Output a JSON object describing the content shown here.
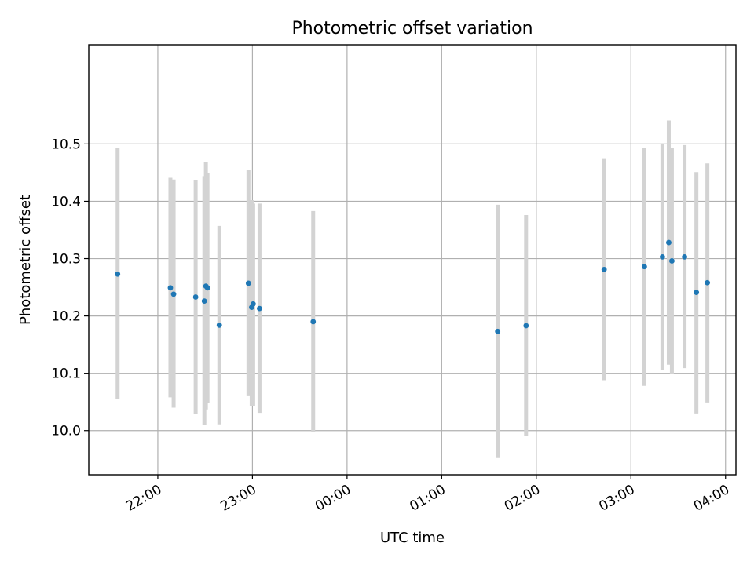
{
  "chart_data": {
    "type": "scatter",
    "title": "Photometric offset variation",
    "xlabel": "UTC time",
    "ylabel": "Photometric offset",
    "grid": true,
    "x_unit": "hours after 00:00 UTC",
    "xlim": [
      -2.73,
      4.11
    ],
    "ylim": [
      9.923,
      10.673
    ],
    "xticks": [
      {
        "value": -2.0,
        "label": "22:00"
      },
      {
        "value": -1.0,
        "label": "23:00"
      },
      {
        "value": 0.0,
        "label": "00:00"
      },
      {
        "value": 1.0,
        "label": "01:00"
      },
      {
        "value": 2.0,
        "label": "02:00"
      },
      {
        "value": 3.0,
        "label": "03:00"
      },
      {
        "value": 4.0,
        "label": "04:00"
      }
    ],
    "yticks": [
      {
        "value": 10.0,
        "label": "10.0"
      },
      {
        "value": 10.1,
        "label": "10.1"
      },
      {
        "value": 10.2,
        "label": "10.2"
      },
      {
        "value": 10.3,
        "label": "10.3"
      },
      {
        "value": 10.4,
        "label": "10.4"
      },
      {
        "value": 10.5,
        "label": "10.5"
      }
    ],
    "marker_color": "#1f77b4",
    "errorbar_color": "#d3d3d3",
    "points": [
      {
        "x": -2.425,
        "y": 10.273,
        "ylo": 10.055,
        "yhi": 10.493
      },
      {
        "x": -1.867,
        "y": 10.249,
        "ylo": 10.058,
        "yhi": 10.441
      },
      {
        "x": -1.833,
        "y": 10.238,
        "ylo": 10.04,
        "yhi": 10.438
      },
      {
        "x": -1.6,
        "y": 10.233,
        "ylo": 10.029,
        "yhi": 10.437
      },
      {
        "x": -1.508,
        "y": 10.226,
        "ylo": 10.01,
        "yhi": 10.444
      },
      {
        "x": -1.492,
        "y": 10.252,
        "ylo": 10.037,
        "yhi": 10.468
      },
      {
        "x": -1.475,
        "y": 10.249,
        "ylo": 10.048,
        "yhi": 10.449
      },
      {
        "x": -1.35,
        "y": 10.184,
        "ylo": 10.011,
        "yhi": 10.357
      },
      {
        "x": -1.042,
        "y": 10.257,
        "ylo": 10.06,
        "yhi": 10.454
      },
      {
        "x": -1.008,
        "y": 10.215,
        "ylo": 10.043,
        "yhi": 10.402
      },
      {
        "x": -0.992,
        "y": 10.221,
        "ylo": 10.043,
        "yhi": 10.396
      },
      {
        "x": -0.925,
        "y": 10.213,
        "ylo": 10.031,
        "yhi": 10.396
      },
      {
        "x": -0.358,
        "y": 10.19,
        "ylo": 9.997,
        "yhi": 10.383
      },
      {
        "x": 1.592,
        "y": 10.173,
        "ylo": 9.952,
        "yhi": 10.394
      },
      {
        "x": 1.892,
        "y": 10.183,
        "ylo": 9.99,
        "yhi": 10.376
      },
      {
        "x": 2.717,
        "y": 10.281,
        "ylo": 10.088,
        "yhi": 10.475
      },
      {
        "x": 3.142,
        "y": 10.286,
        "ylo": 10.078,
        "yhi": 10.493
      },
      {
        "x": 3.333,
        "y": 10.303,
        "ylo": 10.105,
        "yhi": 10.501
      },
      {
        "x": 3.4,
        "y": 10.328,
        "ylo": 10.115,
        "yhi": 10.541
      },
      {
        "x": 3.433,
        "y": 10.296,
        "ylo": 10.099,
        "yhi": 10.493
      },
      {
        "x": 3.567,
        "y": 10.303,
        "ylo": 10.109,
        "yhi": 10.498
      },
      {
        "x": 3.692,
        "y": 10.241,
        "ylo": 10.03,
        "yhi": 10.451
      },
      {
        "x": 3.808,
        "y": 10.258,
        "ylo": 10.049,
        "yhi": 10.466
      }
    ]
  }
}
